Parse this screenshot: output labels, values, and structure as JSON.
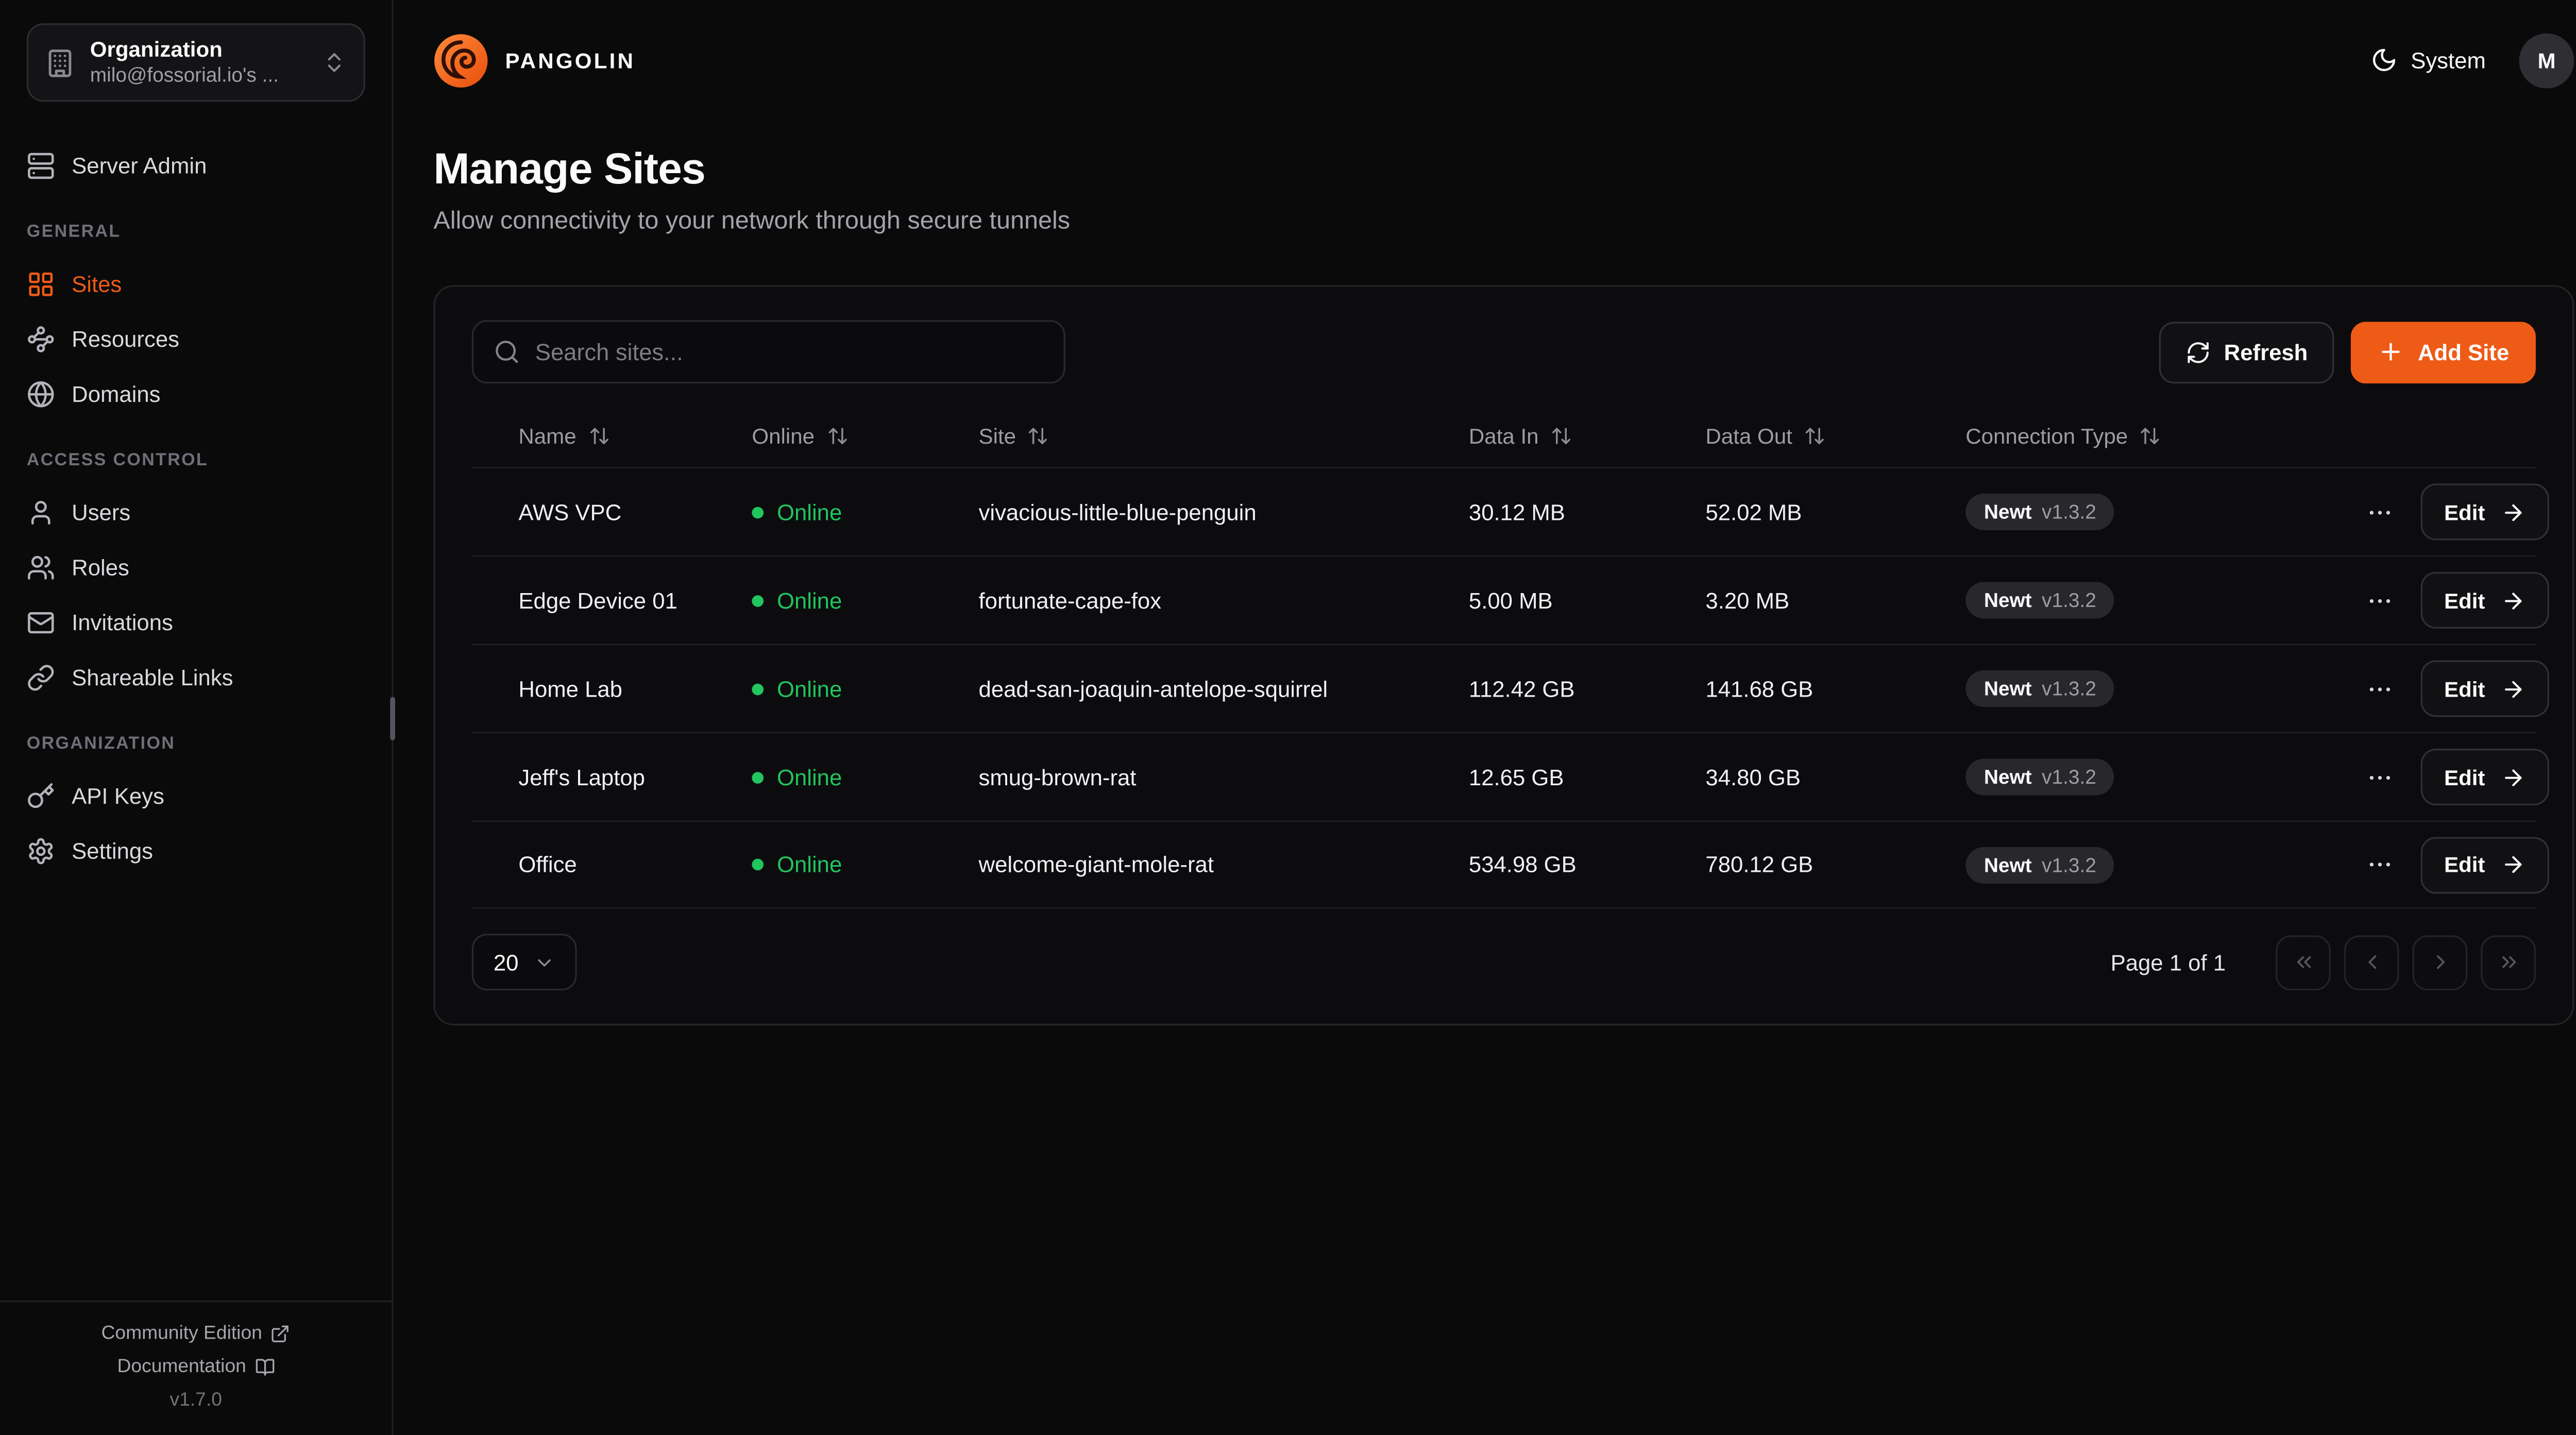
{
  "colors": {
    "accent": "#ee5b17",
    "online": "#22c55e"
  },
  "header": {
    "brand": "PANGOLIN",
    "theme_label": "System",
    "avatar_initial": "M"
  },
  "sidebar": {
    "org": {
      "label": "Organization",
      "value": "milo@fossorial.io's ..."
    },
    "server_admin_label": "Server Admin",
    "sections": [
      {
        "label": "GENERAL",
        "items": [
          {
            "id": "sites",
            "label": "Sites",
            "icon": "sites",
            "active": true
          },
          {
            "id": "resources",
            "label": "Resources",
            "icon": "resources",
            "active": false
          },
          {
            "id": "domains",
            "label": "Domains",
            "icon": "globe",
            "active": false
          }
        ]
      },
      {
        "label": "ACCESS CONTROL",
        "items": [
          {
            "id": "users",
            "label": "Users",
            "icon": "user",
            "active": false
          },
          {
            "id": "roles",
            "label": "Roles",
            "icon": "users",
            "active": false
          },
          {
            "id": "invitations",
            "label": "Invitations",
            "icon": "mail",
            "active": false
          },
          {
            "id": "shareable-links",
            "label": "Shareable Links",
            "icon": "link",
            "active": false
          }
        ]
      },
      {
        "label": "ORGANIZATION",
        "items": [
          {
            "id": "api-keys",
            "label": "API Keys",
            "icon": "key",
            "active": false
          },
          {
            "id": "settings",
            "label": "Settings",
            "icon": "gear",
            "active": false
          }
        ]
      }
    ],
    "footer": {
      "community_edition": "Community Edition",
      "documentation": "Documentation",
      "version": "v1.7.0"
    }
  },
  "page": {
    "title": "Manage Sites",
    "subtitle": "Allow connectivity to your network through secure tunnels"
  },
  "toolbar": {
    "search_placeholder": "Search sites...",
    "refresh_label": "Refresh",
    "add_site_label": "Add Site"
  },
  "table": {
    "columns": [
      {
        "id": "name",
        "label": "Name"
      },
      {
        "id": "online",
        "label": "Online"
      },
      {
        "id": "site",
        "label": "Site"
      },
      {
        "id": "data-in",
        "label": "Data In"
      },
      {
        "id": "data-out",
        "label": "Data Out"
      },
      {
        "id": "connection-type",
        "label": "Connection Type"
      }
    ],
    "edit_label": "Edit",
    "rows": [
      {
        "name": "AWS VPC",
        "status": "Online",
        "site": "vivacious-little-blue-penguin",
        "data_in": "30.12 MB",
        "data_out": "52.02 MB",
        "connection": "Newt",
        "version": "v1.3.2"
      },
      {
        "name": "Edge Device 01",
        "status": "Online",
        "site": "fortunate-cape-fox",
        "data_in": "5.00 MB",
        "data_out": "3.20 MB",
        "connection": "Newt",
        "version": "v1.3.2"
      },
      {
        "name": "Home Lab",
        "status": "Online",
        "site": "dead-san-joaquin-antelope-squirrel",
        "data_in": "112.42 GB",
        "data_out": "141.68 GB",
        "connection": "Newt",
        "version": "v1.3.2"
      },
      {
        "name": "Jeff's Laptop",
        "status": "Online",
        "site": "smug-brown-rat",
        "data_in": "12.65 GB",
        "data_out": "34.80 GB",
        "connection": "Newt",
        "version": "v1.3.2"
      },
      {
        "name": "Office",
        "status": "Online",
        "site": "welcome-giant-mole-rat",
        "data_in": "534.98 GB",
        "data_out": "780.12 GB",
        "connection": "Newt",
        "version": "v1.3.2"
      }
    ]
  },
  "pagination": {
    "page_size": "20",
    "page_label": "Page 1 of 1",
    "buttons": [
      {
        "id": "first-page",
        "icon": "chevrons-left"
      },
      {
        "id": "previous-page",
        "icon": "chevron-left"
      },
      {
        "id": "next-page",
        "icon": "chevron-right"
      },
      {
        "id": "last-page",
        "icon": "chevrons-right"
      }
    ]
  }
}
